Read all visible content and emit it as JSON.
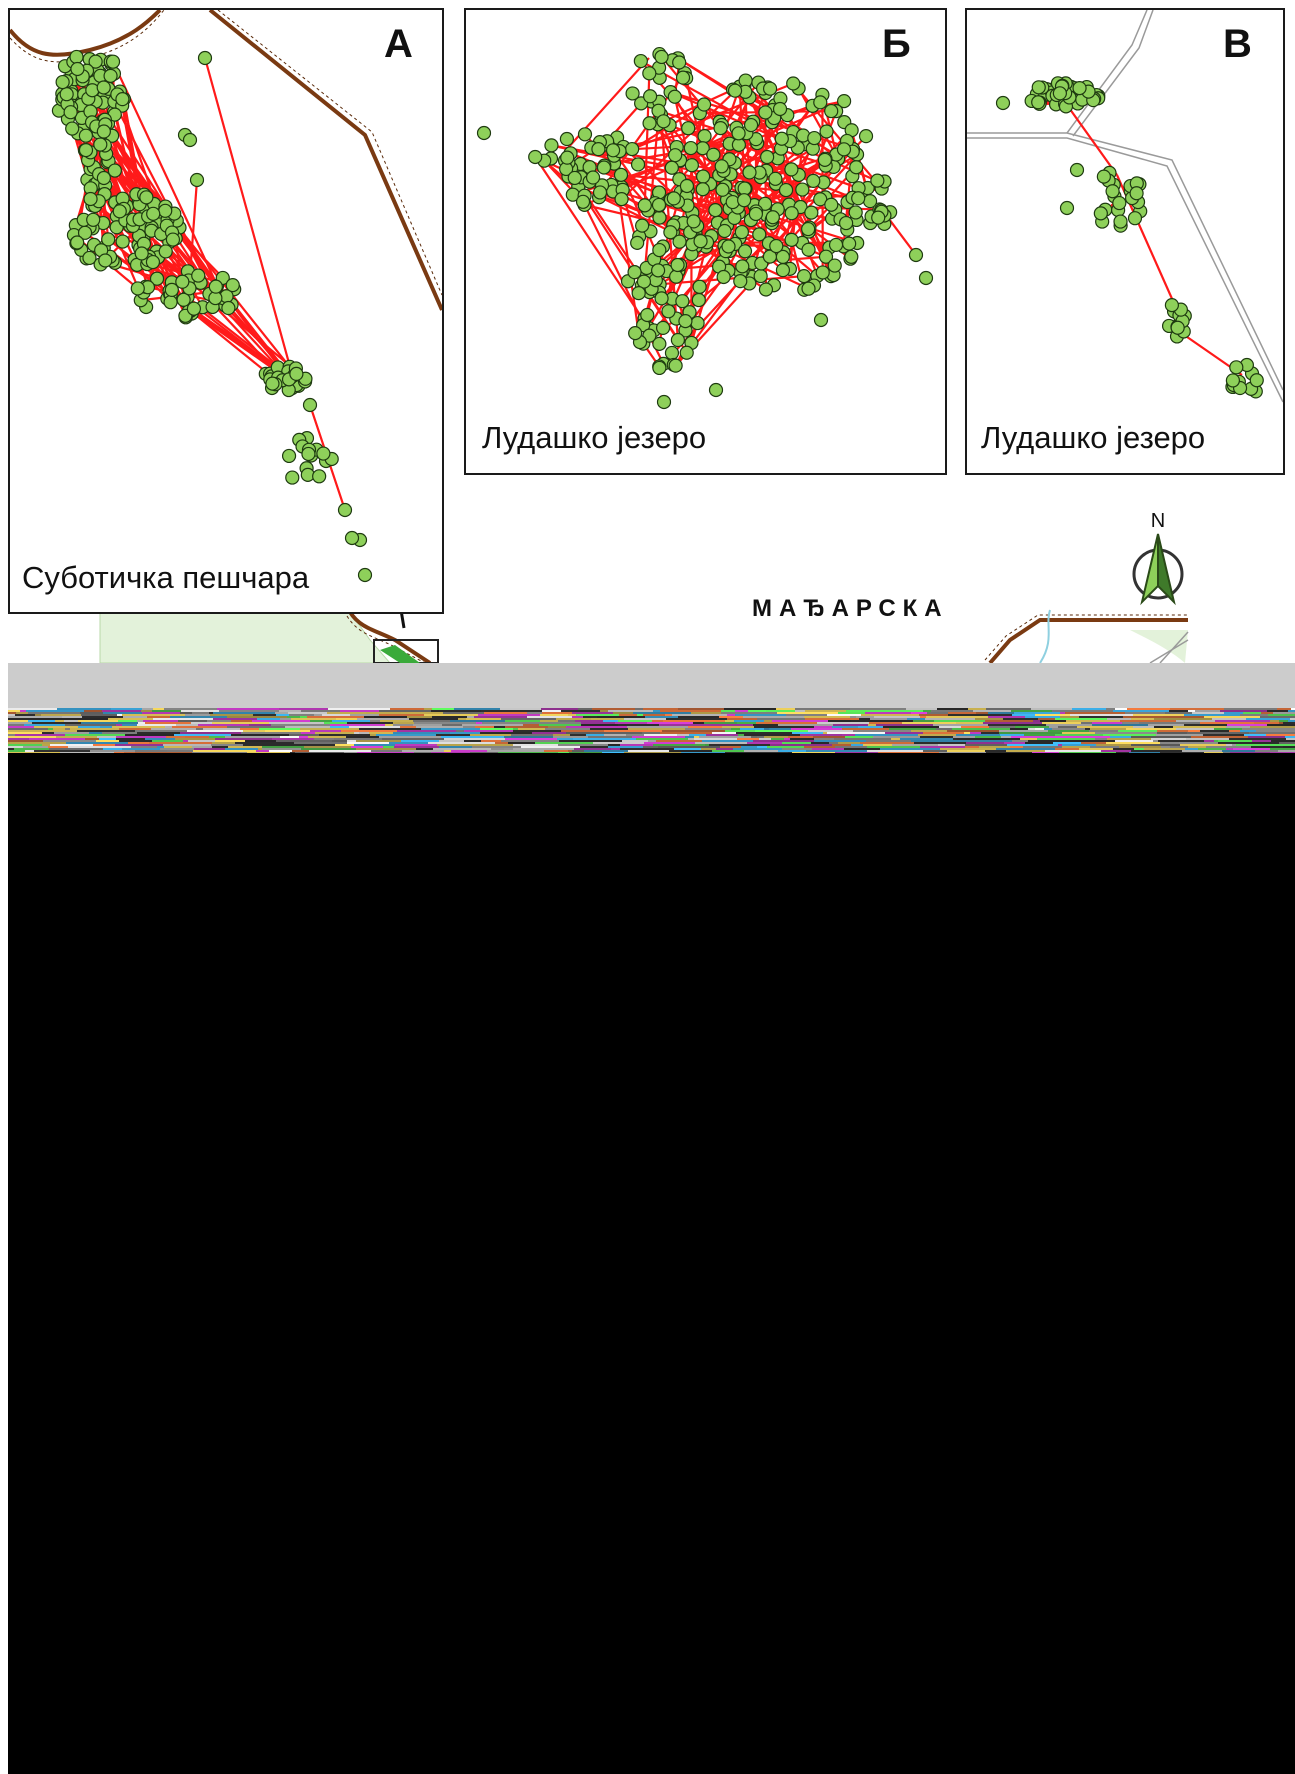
{
  "country_label": "МАЂАРСКА",
  "north_arrow": {
    "letter": "N",
    "icon": "north-arrow-icon"
  },
  "colors": {
    "points_fill": "#8ed05a",
    "points_stroke": "#1e3a10",
    "track": "#ff1a1a",
    "border": "#7a3a12",
    "border_dash": "#5a2a0a",
    "road": "#9a9a9a",
    "protected_area": "#e3f2da",
    "protected_area_dark": "#3aaa3a",
    "water": "#8fd0e0"
  },
  "panels": [
    {
      "letter": "А",
      "place": "Суботичка пешчара"
    },
    {
      "letter": "Б",
      "place": "Лудашко језеро"
    },
    {
      "letter": "В",
      "place": "Лудашко језеро"
    }
  ]
}
